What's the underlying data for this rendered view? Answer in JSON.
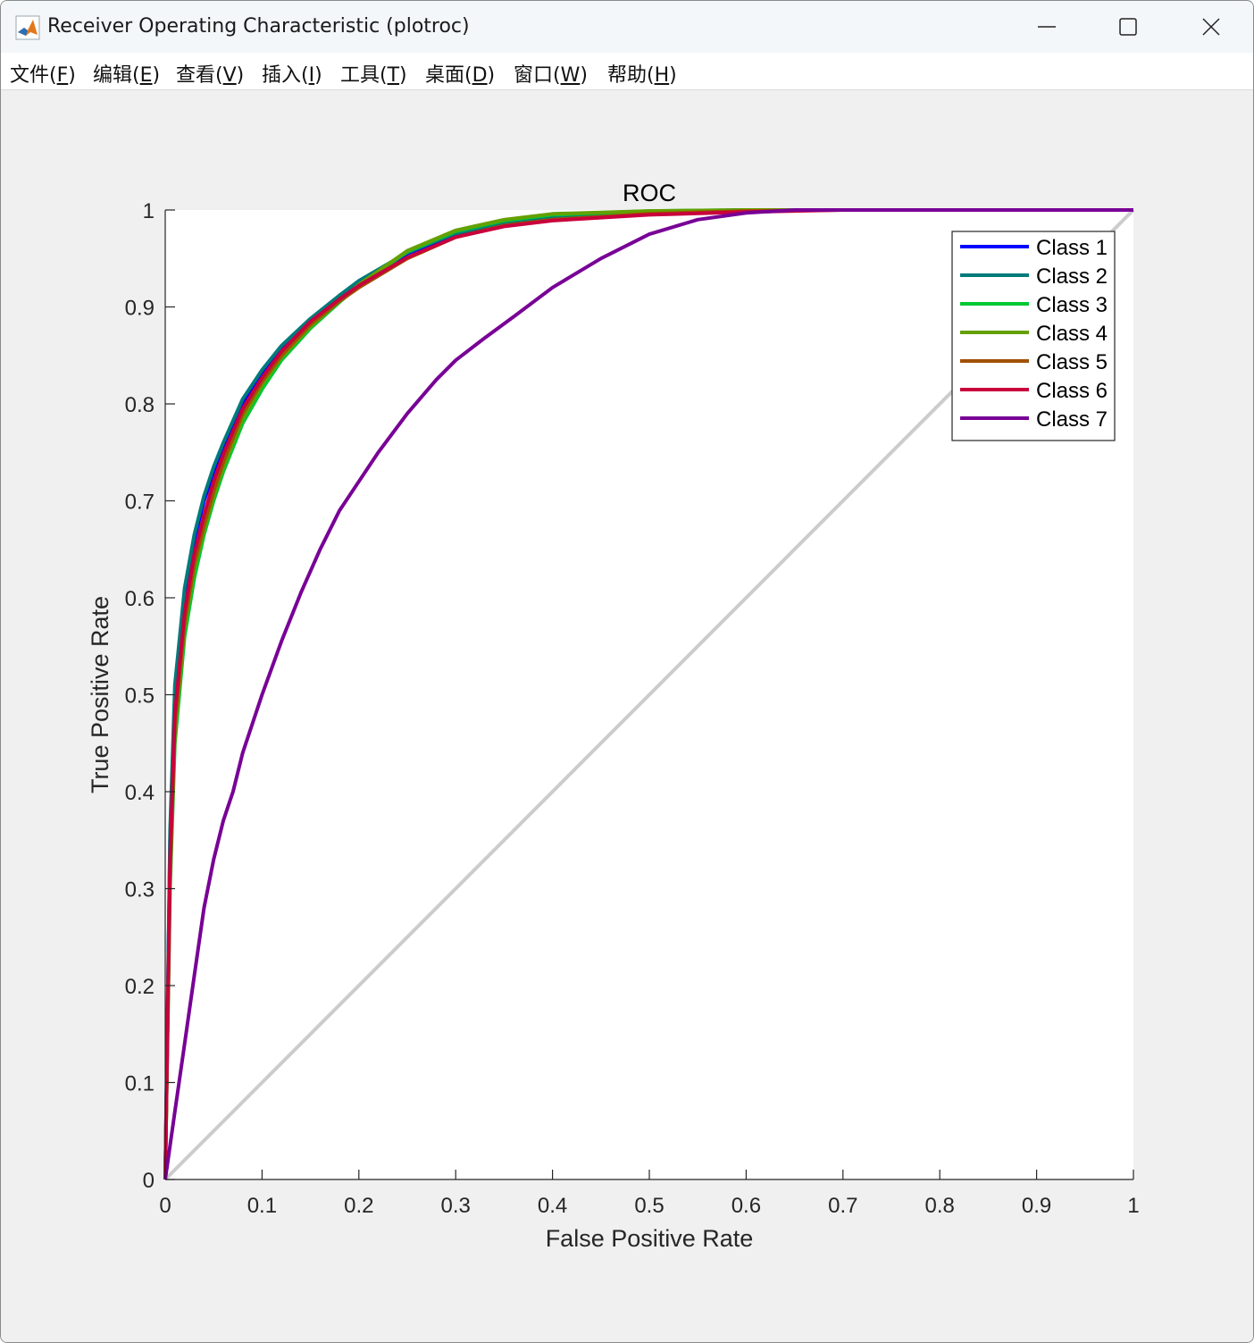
{
  "window": {
    "title": "Receiver Operating Characteristic (plotroc)",
    "min_icon": "minimize-icon",
    "max_icon": "maximize-icon",
    "close_icon": "close-icon"
  },
  "menu": [
    {
      "label": "文件(",
      "key": "F",
      "suffix": ")"
    },
    {
      "label": "编辑(",
      "key": "E",
      "suffix": ")"
    },
    {
      "label": "查看(",
      "key": "V",
      "suffix": ")"
    },
    {
      "label": "插入(",
      "key": "I",
      "suffix": ")"
    },
    {
      "label": "工具(",
      "key": "T",
      "suffix": ")"
    },
    {
      "label": "桌面(",
      "key": "D",
      "suffix": ")"
    },
    {
      "label": "窗口(",
      "key": "W",
      "suffix": ")"
    },
    {
      "label": "帮助(",
      "key": "H",
      "suffix": ")"
    }
  ],
  "chart_data": {
    "type": "line",
    "title": "ROC",
    "xlabel": "False Positive Rate",
    "ylabel": "True Positive Rate",
    "xlim": [
      0,
      1
    ],
    "ylim": [
      0,
      1
    ],
    "xticks": [
      "0",
      "0.1",
      "0.2",
      "0.3",
      "0.4",
      "0.5",
      "0.6",
      "0.7",
      "0.8",
      "0.9",
      "1"
    ],
    "yticks": [
      "0",
      "0.1",
      "0.2",
      "0.3",
      "0.4",
      "0.5",
      "0.6",
      "0.7",
      "0.8",
      "0.9",
      "1"
    ],
    "grid": false,
    "legend_position": "top-right",
    "reference_line": {
      "x": [
        0,
        1
      ],
      "y": [
        0,
        1
      ],
      "color": "#cccccc"
    },
    "series": [
      {
        "name": "Class 1",
        "color": "#0000ff",
        "x": [
          0,
          0.005,
          0.01,
          0.02,
          0.03,
          0.04,
          0.05,
          0.06,
          0.08,
          0.1,
          0.12,
          0.15,
          0.18,
          0.2,
          0.25,
          0.3,
          0.35,
          0.4,
          0.5,
          0.6,
          0.7,
          0.8,
          0.9,
          1
        ],
        "y": [
          0,
          0.35,
          0.5,
          0.6,
          0.66,
          0.7,
          0.73,
          0.755,
          0.8,
          0.83,
          0.855,
          0.885,
          0.91,
          0.925,
          0.955,
          0.975,
          0.987,
          0.993,
          0.998,
          1,
          1,
          1,
          1,
          1
        ]
      },
      {
        "name": "Class 2",
        "color": "#007a7a",
        "x": [
          0,
          0.005,
          0.01,
          0.02,
          0.03,
          0.04,
          0.05,
          0.06,
          0.08,
          0.1,
          0.12,
          0.15,
          0.18,
          0.2,
          0.25,
          0.3,
          0.35,
          0.4,
          0.5,
          0.6,
          0.7,
          0.8,
          0.9,
          1
        ],
        "y": [
          0,
          0.36,
          0.51,
          0.61,
          0.665,
          0.705,
          0.735,
          0.76,
          0.805,
          0.835,
          0.86,
          0.888,
          0.912,
          0.927,
          0.956,
          0.976,
          0.987,
          0.993,
          0.998,
          1,
          1,
          1,
          1,
          1
        ]
      },
      {
        "name": "Class 3",
        "color": "#00c832",
        "x": [
          0,
          0.005,
          0.01,
          0.02,
          0.03,
          0.04,
          0.05,
          0.06,
          0.08,
          0.1,
          0.12,
          0.15,
          0.18,
          0.2,
          0.25,
          0.3,
          0.35,
          0.4,
          0.5,
          0.6,
          0.7,
          0.8,
          0.9,
          1
        ],
        "y": [
          0,
          0.3,
          0.45,
          0.56,
          0.62,
          0.665,
          0.7,
          0.73,
          0.78,
          0.815,
          0.845,
          0.878,
          0.905,
          0.922,
          0.957,
          0.978,
          0.989,
          0.995,
          0.999,
          1,
          1,
          1,
          1,
          1
        ]
      },
      {
        "name": "Class 4",
        "color": "#64a000",
        "x": [
          0,
          0.005,
          0.01,
          0.02,
          0.03,
          0.04,
          0.05,
          0.06,
          0.08,
          0.1,
          0.12,
          0.15,
          0.18,
          0.2,
          0.25,
          0.3,
          0.35,
          0.4,
          0.5,
          0.6,
          0.7,
          0.8,
          0.9,
          1
        ],
        "y": [
          0,
          0.31,
          0.46,
          0.57,
          0.63,
          0.67,
          0.705,
          0.735,
          0.785,
          0.82,
          0.848,
          0.88,
          0.906,
          0.923,
          0.958,
          0.979,
          0.99,
          0.996,
          0.999,
          1,
          1,
          1,
          1,
          1
        ]
      },
      {
        "name": "Class 5",
        "color": "#a05000",
        "x": [
          0,
          0.005,
          0.01,
          0.02,
          0.03,
          0.04,
          0.05,
          0.06,
          0.08,
          0.1,
          0.12,
          0.15,
          0.18,
          0.2,
          0.25,
          0.3,
          0.35,
          0.4,
          0.5,
          0.6,
          0.7,
          0.8,
          0.9,
          1
        ],
        "y": [
          0,
          0.32,
          0.47,
          0.575,
          0.635,
          0.675,
          0.71,
          0.74,
          0.79,
          0.823,
          0.85,
          0.882,
          0.906,
          0.92,
          0.95,
          0.972,
          0.984,
          0.99,
          0.996,
          0.999,
          1,
          1,
          1,
          1
        ]
      },
      {
        "name": "Class 6",
        "color": "#c8003c",
        "x": [
          0,
          0.005,
          0.01,
          0.02,
          0.03,
          0.04,
          0.05,
          0.06,
          0.08,
          0.1,
          0.12,
          0.15,
          0.18,
          0.2,
          0.25,
          0.3,
          0.35,
          0.4,
          0.5,
          0.6,
          0.7,
          0.8,
          0.9,
          1
        ],
        "y": [
          0,
          0.33,
          0.48,
          0.585,
          0.645,
          0.685,
          0.72,
          0.748,
          0.795,
          0.827,
          0.854,
          0.885,
          0.908,
          0.922,
          0.951,
          0.972,
          0.983,
          0.989,
          0.995,
          0.998,
          1,
          1,
          1,
          1
        ]
      },
      {
        "name": "Class 7",
        "color": "#780096",
        "x": [
          0,
          0.01,
          0.02,
          0.03,
          0.04,
          0.05,
          0.06,
          0.07,
          0.08,
          0.1,
          0.12,
          0.14,
          0.16,
          0.18,
          0.2,
          0.22,
          0.25,
          0.28,
          0.3,
          0.33,
          0.36,
          0.4,
          0.45,
          0.5,
          0.55,
          0.6,
          0.65,
          0.7,
          0.8,
          0.9,
          1
        ],
        "y": [
          0,
          0.07,
          0.14,
          0.21,
          0.28,
          0.33,
          0.37,
          0.4,
          0.44,
          0.5,
          0.555,
          0.605,
          0.65,
          0.69,
          0.72,
          0.75,
          0.79,
          0.825,
          0.845,
          0.868,
          0.89,
          0.92,
          0.95,
          0.975,
          0.99,
          0.997,
          1,
          1,
          1,
          1,
          1
        ]
      }
    ]
  }
}
